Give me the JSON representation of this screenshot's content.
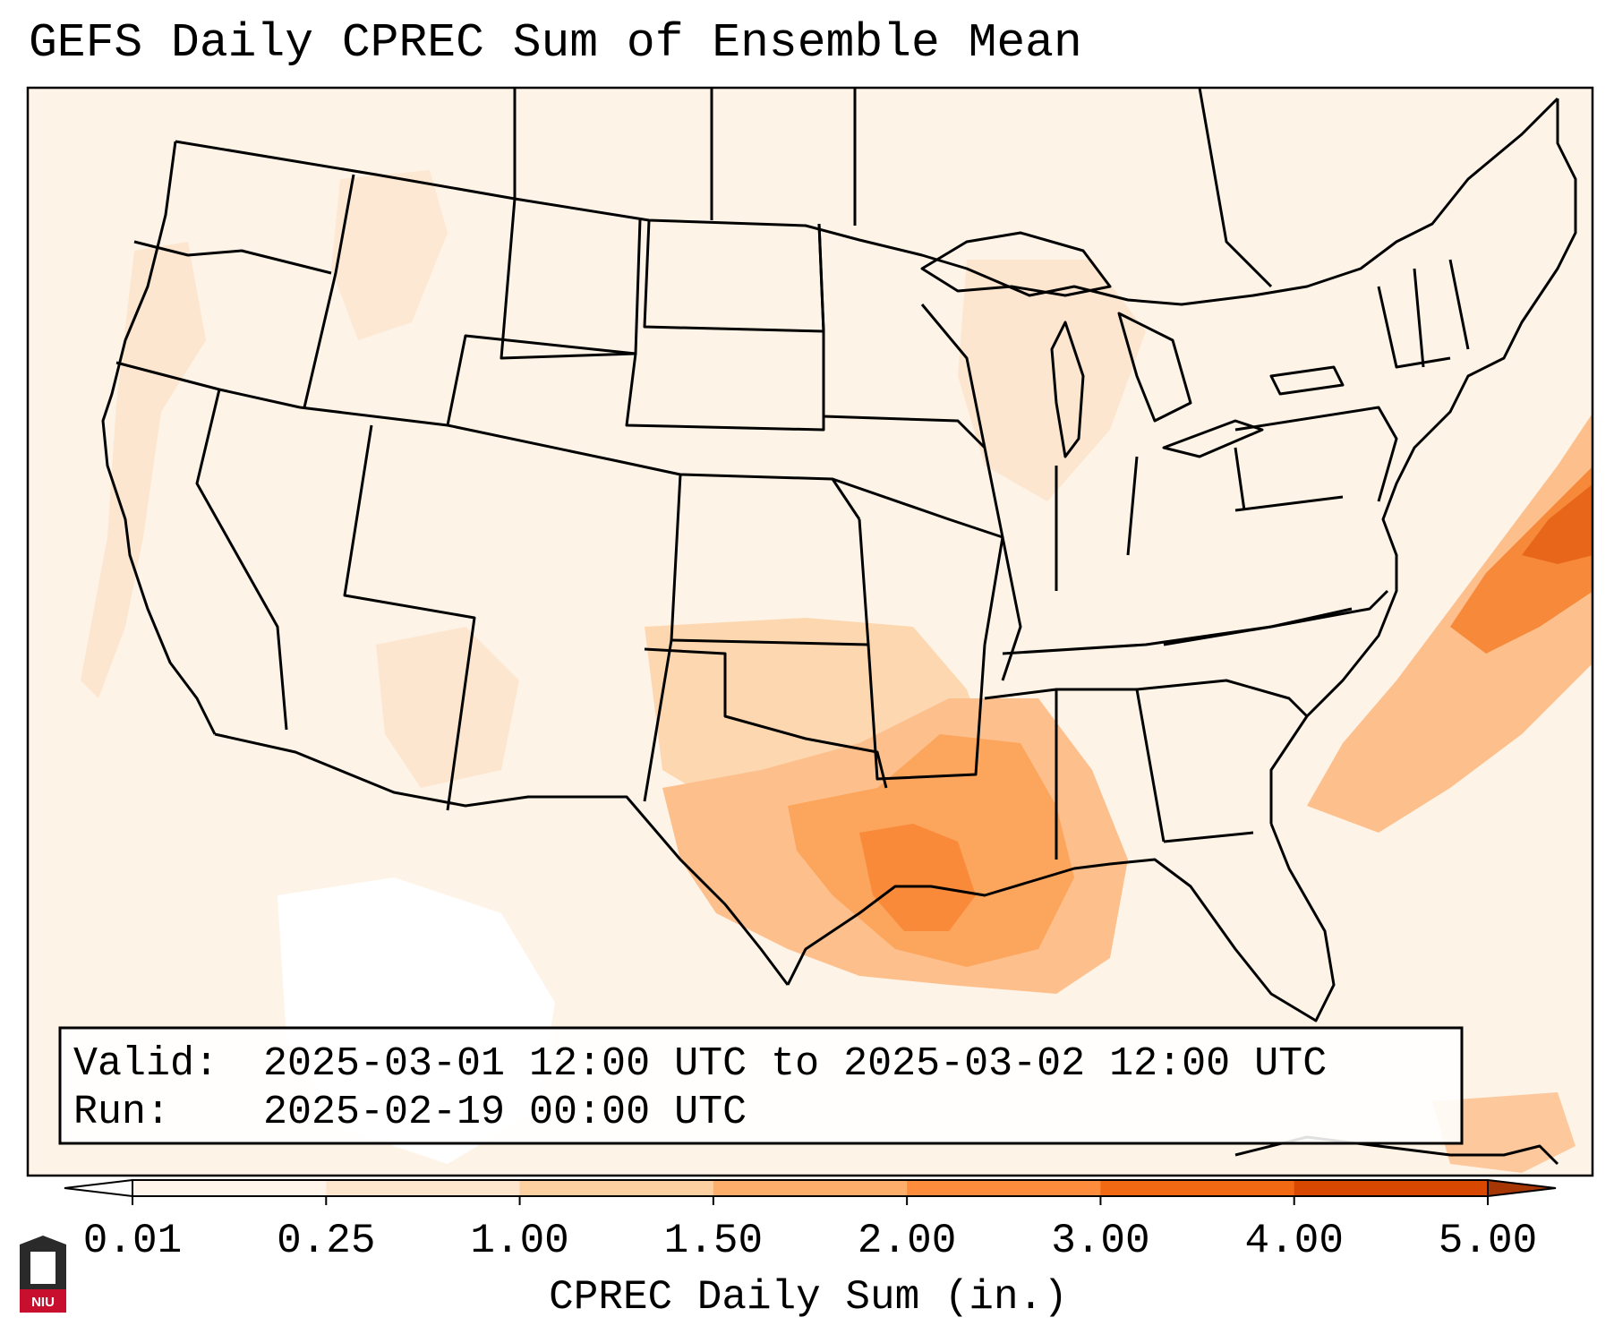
{
  "title": "GEFS Daily CPREC Sum of Ensemble Mean",
  "info_box": {
    "valid_label": "Valid:",
    "valid_value": "2025-03-01 12:00 UTC to 2025-03-02 12:00 UTC",
    "run_label": "Run:",
    "run_value": "2025-02-19 00:00 UTC"
  },
  "colorbar": {
    "label": "CPREC Daily Sum (in.)",
    "ticks": [
      "0.01",
      "0.25",
      "1.00",
      "1.50",
      "2.00",
      "3.00",
      "4.00",
      "5.00"
    ],
    "levels": [
      0.01,
      0.25,
      1.0,
      1.5,
      2.0,
      3.0,
      4.0,
      5.0
    ],
    "colors": [
      "#fff5eb",
      "#fee6ce",
      "#fdd0a2",
      "#fdae6b",
      "#fd8d3c",
      "#f16913",
      "#d94801",
      "#a63603"
    ],
    "extend": "both"
  },
  "logo": {
    "text": "NIU"
  },
  "colors": {
    "frame": "#000000",
    "ocean_light": "#fff5eb",
    "land_border": "#000000"
  }
}
